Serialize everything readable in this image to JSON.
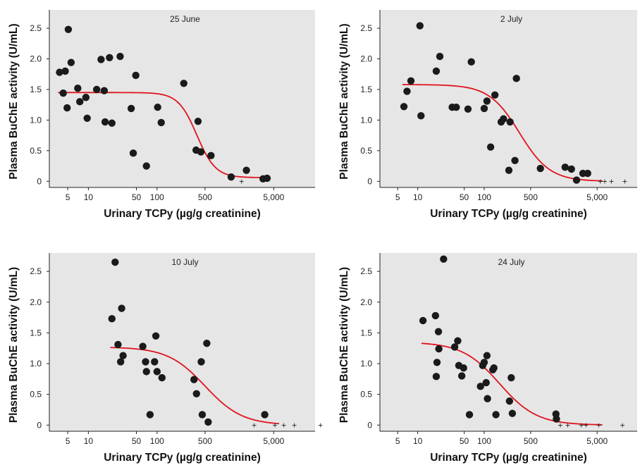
{
  "chart_data": [
    {
      "type": "scatter",
      "title": "25 June",
      "xlabel": "Urinary TCPy (µg/g creatinine)",
      "ylabel": "Plasma BuChE activity (U/mL)",
      "x_scale": "log",
      "xlim": [
        2.7,
        20000
      ],
      "ylim": [
        -0.1,
        2.8
      ],
      "x_ticks": [
        5,
        10,
        50,
        100,
        500,
        5000
      ],
      "x_tick_labels": [
        "5",
        "10",
        "50",
        "100",
        "500",
        "5,000"
      ],
      "y_ticks": [
        0,
        0.5,
        1.0,
        1.5,
        2.0,
        2.5
      ],
      "y_tick_labels": [
        "0",
        "0.5",
        "1.0",
        "1.5",
        "2.0",
        "2.5"
      ],
      "grid": false,
      "colors": {
        "points": "#1a1a1a",
        "curve": "#e0141e",
        "background": "#e6e6e6"
      },
      "points": [
        [
          3.8,
          1.78
        ],
        [
          4.3,
          1.44
        ],
        [
          4.6,
          1.8
        ],
        [
          4.9,
          1.2
        ],
        [
          5.1,
          2.48
        ],
        [
          5.6,
          1.94
        ],
        [
          7.0,
          1.52
        ],
        [
          7.5,
          1.3
        ],
        [
          9.2,
          1.37
        ],
        [
          9.6,
          1.03
        ],
        [
          13.2,
          1.5
        ],
        [
          15.3,
          1.99
        ],
        [
          17.0,
          1.48
        ],
        [
          17.5,
          0.97
        ],
        [
          20.3,
          2.02
        ],
        [
          22.0,
          0.95
        ],
        [
          29.0,
          2.04
        ],
        [
          42.0,
          1.19
        ],
        [
          45.0,
          0.46
        ],
        [
          49.0,
          1.73
        ],
        [
          70.0,
          0.25
        ],
        [
          102.0,
          1.21
        ],
        [
          115.0,
          0.96
        ],
        [
          245.0,
          1.6
        ],
        [
          370.0,
          0.51
        ],
        [
          395.0,
          0.98
        ],
        [
          435.0,
          0.48
        ],
        [
          610.0,
          0.42
        ],
        [
          1200.0,
          0.07
        ],
        [
          2000.0,
          0.18
        ],
        [
          3500.0,
          0.04
        ],
        [
          4000.0,
          0.05
        ]
      ],
      "below_detection": [
        1700
      ],
      "curve": {
        "top": 1.45,
        "bottom": 0.06,
        "ec50": 380,
        "slope": 3.2
      }
    },
    {
      "type": "scatter",
      "title": "2 July",
      "xlabel": "Urinary TCPy (µg/g creatinine)",
      "ylabel": "Plasma BuChE activity (U/mL)",
      "x_scale": "log",
      "xlim": [
        2.7,
        20000
      ],
      "ylim": [
        -0.1,
        2.8
      ],
      "x_ticks": [
        5,
        10,
        50,
        100,
        500,
        5000
      ],
      "x_tick_labels": [
        "5",
        "10",
        "50",
        "100",
        "500",
        "5,000"
      ],
      "y_ticks": [
        0,
        0.5,
        1.0,
        1.5,
        2.0,
        2.5
      ],
      "y_tick_labels": [
        "0",
        "0.5",
        "1.0",
        "1.5",
        "2.0",
        "2.5"
      ],
      "grid": false,
      "colors": {
        "points": "#1a1a1a",
        "curve": "#e0141e",
        "background": "#e6e6e6"
      },
      "points": [
        [
          6.2,
          1.22
        ],
        [
          6.9,
          1.47
        ],
        [
          7.9,
          1.64
        ],
        [
          10.8,
          2.54
        ],
        [
          11.2,
          1.07
        ],
        [
          19.0,
          1.8
        ],
        [
          21.5,
          2.04
        ],
        [
          33.0,
          1.21
        ],
        [
          38.0,
          1.21
        ],
        [
          57.0,
          1.18
        ],
        [
          64.0,
          1.95
        ],
        [
          100.0,
          1.19
        ],
        [
          110.0,
          1.31
        ],
        [
          125.0,
          0.56
        ],
        [
          145.0,
          1.41
        ],
        [
          180.0,
          0.97
        ],
        [
          195.0,
          1.02
        ],
        [
          235.0,
          0.18
        ],
        [
          245.0,
          0.97
        ],
        [
          290.0,
          0.34
        ],
        [
          305.0,
          1.68
        ],
        [
          700.0,
          0.21
        ],
        [
          1650.0,
          0.23
        ],
        [
          2050.0,
          0.2
        ],
        [
          2450.0,
          0.02
        ],
        [
          3050.0,
          0.13
        ],
        [
          3600.0,
          0.13
        ]
      ],
      "below_detection": [
        5600,
        6500,
        8200,
        13000
      ],
      "curve": {
        "top": 1.58,
        "bottom": 0.0,
        "ec50": 340,
        "slope": 1.9
      }
    },
    {
      "type": "scatter",
      "title": "10 July",
      "xlabel": "Urinary TCPy (µg/g creatinine)",
      "ylabel": "Plasma BuChE activity (U/mL)",
      "x_scale": "log",
      "xlim": [
        2.7,
        20000
      ],
      "ylim": [
        -0.1,
        2.8
      ],
      "x_ticks": [
        5,
        10,
        50,
        100,
        500,
        5000
      ],
      "x_tick_labels": [
        "5",
        "10",
        "50",
        "100",
        "500",
        "5,000"
      ],
      "y_ticks": [
        0,
        0.5,
        1.0,
        1.5,
        2.0,
        2.5
      ],
      "y_tick_labels": [
        "0",
        "0.5",
        "1.0",
        "1.5",
        "2.0",
        "2.5"
      ],
      "grid": false,
      "colors": {
        "points": "#1a1a1a",
        "curve": "#e0141e",
        "background": "#e6e6e6"
      },
      "points": [
        [
          22.0,
          1.73
        ],
        [
          24.5,
          2.65
        ],
        [
          27.0,
          1.31
        ],
        [
          29.5,
          1.03
        ],
        [
          30.5,
          1.9
        ],
        [
          32.0,
          1.13
        ],
        [
          62.0,
          1.28
        ],
        [
          68.0,
          1.03
        ],
        [
          70.0,
          0.87
        ],
        [
          79.0,
          0.17
        ],
        [
          92.0,
          1.03
        ],
        [
          96.0,
          1.45
        ],
        [
          100.0,
          0.87
        ],
        [
          118.0,
          0.77
        ],
        [
          345.0,
          0.74
        ],
        [
          375.0,
          0.51
        ],
        [
          440.0,
          1.03
        ],
        [
          455.0,
          0.17
        ],
        [
          530.0,
          1.33
        ],
        [
          555.0,
          0.05
        ],
        [
          3700.0,
          0.17
        ]
      ],
      "below_detection": [
        2600,
        5200,
        7000,
        10000,
        24000
      ],
      "curve": {
        "top": 1.27,
        "bottom": 0.0,
        "ec50": 500,
        "slope": 1.6
      }
    },
    {
      "type": "scatter",
      "title": "24 July",
      "xlabel": "Urinary TCPy (µg/g creatinine)",
      "ylabel": "Plasma BuChE activity (U/mL)",
      "x_scale": "log",
      "xlim": [
        2.7,
        20000
      ],
      "ylim": [
        -0.1,
        2.8
      ],
      "x_ticks": [
        5,
        10,
        50,
        100,
        500,
        5000
      ],
      "x_tick_labels": [
        "5",
        "10",
        "50",
        "100",
        "500",
        "5,000"
      ],
      "y_ticks": [
        0,
        0.5,
        1.0,
        1.5,
        2.0,
        2.5
      ],
      "y_tick_labels": [
        "0",
        "0.5",
        "1.0",
        "1.5",
        "2.0",
        "2.5"
      ],
      "grid": false,
      "colors": {
        "points": "#1a1a1a",
        "curve": "#e0141e",
        "background": "#e6e6e6"
      },
      "points": [
        [
          12.0,
          1.7
        ],
        [
          18.5,
          1.78
        ],
        [
          19.0,
          0.79
        ],
        [
          19.5,
          1.02
        ],
        [
          20.5,
          1.52
        ],
        [
          20.8,
          1.24
        ],
        [
          24.5,
          2.7
        ],
        [
          36.0,
          1.27
        ],
        [
          40.0,
          1.37
        ],
        [
          41.5,
          0.97
        ],
        [
          46.0,
          0.8
        ],
        [
          49.0,
          0.93
        ],
        [
          60.0,
          0.17
        ],
        [
          88.0,
          0.63
        ],
        [
          95.0,
          0.97
        ],
        [
          100.0,
          1.02
        ],
        [
          107.0,
          0.69
        ],
        [
          110.0,
          1.13
        ],
        [
          112.0,
          0.43
        ],
        [
          135.0,
          0.9
        ],
        [
          140.0,
          0.93
        ],
        [
          150.0,
          0.17
        ],
        [
          240.0,
          0.39
        ],
        [
          255.0,
          0.77
        ],
        [
          265.0,
          0.19
        ],
        [
          1200.0,
          0.18
        ],
        [
          1220.0,
          0.1
        ]
      ],
      "below_detection": [
        1400,
        1800,
        2900,
        3400,
        5300,
        12000
      ],
      "curve": {
        "top": 1.35,
        "bottom": 0.0,
        "ec50": 170,
        "slope": 1.55
      }
    }
  ]
}
